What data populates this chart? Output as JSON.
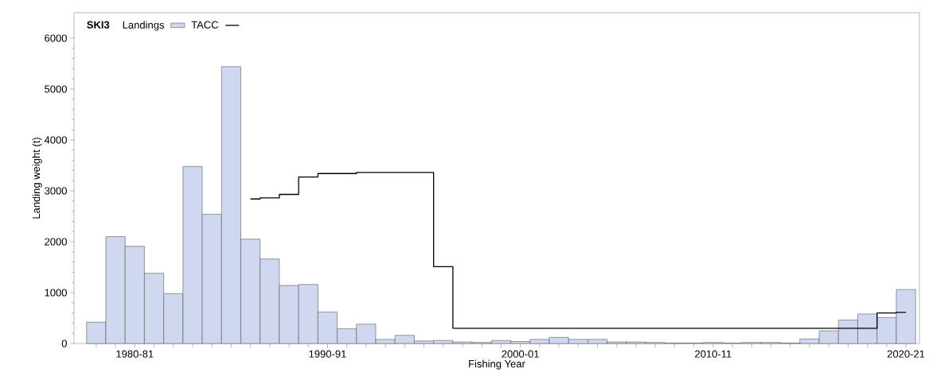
{
  "chart_data": {
    "type": "bar",
    "xlabel": "Fishing Year",
    "ylabel": "Landing weight (t)",
    "legend_title": "SKI3",
    "legend": "top left",
    "categories": [
      null,
      null,
      "1980-81",
      null,
      null,
      null,
      null,
      null,
      null,
      null,
      null,
      null,
      "1990-91",
      null,
      null,
      null,
      null,
      null,
      null,
      null,
      null,
      null,
      "2000-01",
      null,
      null,
      null,
      null,
      null,
      null,
      null,
      null,
      null,
      "2010-11",
      null,
      null,
      null,
      null,
      null,
      null,
      null,
      null,
      null,
      "2020-21"
    ],
    "ylim": [
      0,
      6500
    ],
    "yticks": [
      0,
      1000,
      2000,
      3000,
      4000,
      5000,
      6000
    ],
    "series": [
      {
        "name": "Landings",
        "color": "#d0d8f0",
        "values": [
          420,
          2100,
          1910,
          1380,
          980,
          3480,
          2540,
          5440,
          2050,
          1660,
          1140,
          1160,
          620,
          290,
          380,
          80,
          160,
          50,
          60,
          30,
          20,
          60,
          40,
          80,
          120,
          80,
          80,
          30,
          30,
          20,
          10,
          10,
          20,
          10,
          20,
          20,
          10,
          90,
          250,
          460,
          580,
          510,
          1060
        ]
      },
      {
        "name": "TACC",
        "type": "step",
        "color": "#000000",
        "values": [
          null,
          null,
          null,
          null,
          null,
          null,
          null,
          null,
          2840,
          2860,
          2930,
          3270,
          3340,
          3340,
          3360,
          3360,
          3360,
          3360,
          1510,
          300,
          300,
          300,
          300,
          300,
          300,
          300,
          300,
          300,
          300,
          300,
          300,
          300,
          300,
          300,
          300,
          300,
          300,
          300,
          300,
          300,
          300,
          600,
          610
        ]
      }
    ]
  }
}
